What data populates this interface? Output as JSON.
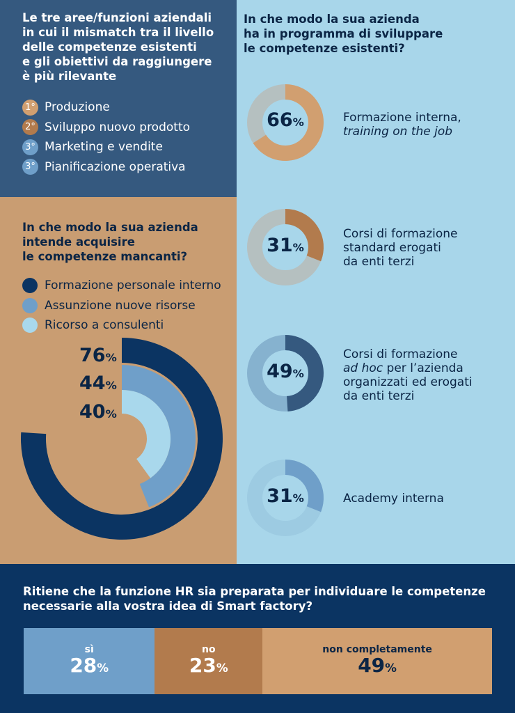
{
  "colors": {
    "navy": "#0b3462",
    "steel": "#35597f",
    "mid_blue": "#6f9fc9",
    "light_blue": "#a8d6ea",
    "sky": "#a9d8ec",
    "tan": "#c99d72",
    "rust": "#b27b4d",
    "grey": "#b5c0c0",
    "sand": "#d19f70"
  },
  "areas": {
    "title": "Le tre aree/funzioni aziendali\nin cui il mismatch tra il livello\ndelle competenze esistenti\ne gli obiettivi da raggiungere\nè più rilevante",
    "items": [
      {
        "rank": "1°",
        "label": "Produzione",
        "color": "#d19f70"
      },
      {
        "rank": "2°",
        "label": "Sviluppo nuovo prodotto",
        "color": "#b27b4d"
      },
      {
        "rank": "3°",
        "label": "Marketing e vendite",
        "color": "#6f9fc9"
      },
      {
        "rank": "3°",
        "label": "Pianificazione operativa",
        "color": "#6f9fc9"
      }
    ]
  },
  "acquire": {
    "title": "In che modo la sua azienda\nintende acquisire\nle competenze mancanti?",
    "legend": [
      {
        "label": "Formazione personale interno",
        "color": "#0b3462"
      },
      {
        "label": "Assunzione nuove risorse",
        "color": "#6f9fc9"
      },
      {
        "label": "Ricorso a consulenti",
        "color": "#a9d8ec"
      }
    ],
    "labels": [
      {
        "value": "76",
        "unit": "%"
      },
      {
        "value": "44",
        "unit": "%"
      },
      {
        "value": "40",
        "unit": "%"
      }
    ]
  },
  "develop": {
    "title": "In che modo la sua azienda\nha in programma di sviluppare\nle competenze esistenti?",
    "items": [
      {
        "value": "66",
        "unit": "%",
        "caption": "Formazione interna,",
        "caption_italic": "training on the job",
        "caption_rest": "",
        "caption_2": ""
      },
      {
        "value": "31",
        "unit": "%",
        "caption": "Corsi di formazione\nstandard erogati\nda enti terzi",
        "caption_italic": "",
        "caption_rest": "",
        "caption_2": ""
      },
      {
        "value": "49",
        "unit": "%",
        "caption": "Corsi di formazione",
        "caption_italic": "ad hoc",
        "caption_rest": " per l’azienda",
        "caption_2": "organizzati ed erogati\nda enti terzi"
      },
      {
        "value": "31",
        "unit": "%",
        "caption": "Academy interna",
        "caption_italic": "",
        "caption_rest": "",
        "caption_2": ""
      }
    ]
  },
  "hr": {
    "title": "Ritiene che la funzione HR sia preparata per individuare le competenze\nnecessarie alla vostra idea di Smart factory?",
    "segments": [
      {
        "label": "sì",
        "value": "28",
        "unit": "%",
        "color": "#6f9fc9"
      },
      {
        "label": "no",
        "value": "23",
        "unit": "%",
        "color": "#b27b4d"
      },
      {
        "label": "non completamente",
        "value": "49",
        "unit": "%",
        "color": "#d19f70"
      }
    ]
  },
  "chart_data": [
    {
      "type": "radial bar",
      "series": [
        {
          "name": "Formazione personale interno",
          "value": 76
        },
        {
          "name": "Assunzione nuove risorse",
          "value": 44
        },
        {
          "name": "Ricorso a consulenti",
          "value": 40
        }
      ],
      "unit": "%"
    },
    {
      "type": "donut",
      "series": [
        {
          "name": "Formazione interna, training on the job",
          "value": 66,
          "color": "#d19f70",
          "track": "#b5c0c0"
        },
        {
          "name": "Corsi di formazione standard erogati da enti terzi",
          "value": 31,
          "color": "#b27b4d",
          "track": "#b5c0c0"
        },
        {
          "name": "Corsi di formazione ad hoc per l’azienda organizzati ed erogati da enti terzi",
          "value": 49,
          "color": "#35597f",
          "track": "#86b2cf"
        },
        {
          "name": "Academy interna",
          "value": 31,
          "color": "#6f9fc9",
          "track": "#9dcbe2"
        }
      ],
      "unit": "%"
    },
    {
      "type": "stacked bar",
      "categories": [
        "sì",
        "no",
        "non completamente"
      ],
      "values": [
        28,
        23,
        49
      ],
      "unit": "%"
    }
  ]
}
